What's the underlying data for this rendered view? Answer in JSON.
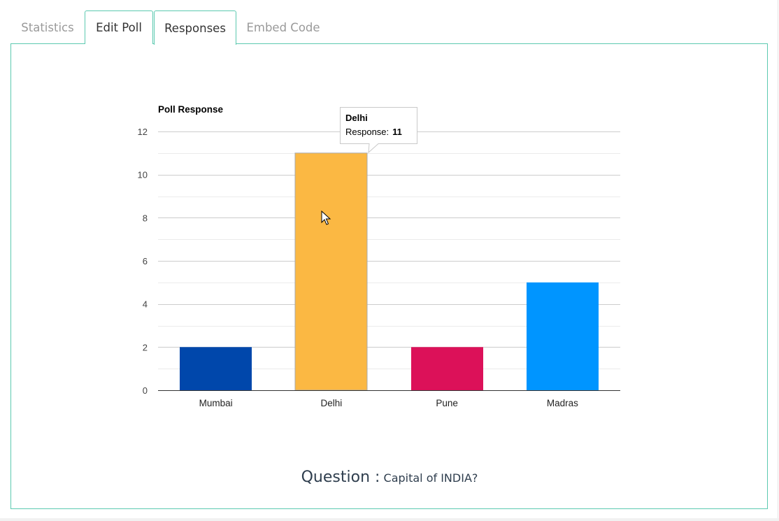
{
  "tabs": [
    {
      "label": "Statistics"
    },
    {
      "label": "Edit Poll"
    },
    {
      "label": "Responses"
    },
    {
      "label": "Embed Code"
    }
  ],
  "question": {
    "label": "Question :",
    "text": "Capital of INDIA?"
  },
  "tooltip": {
    "title": "Delhi",
    "label": "Response:",
    "value": "11"
  },
  "chart_data": {
    "type": "bar",
    "title": "Poll Response",
    "categories": [
      "Mumbai",
      "Delhi",
      "Pune",
      "Madras"
    ],
    "series": [
      {
        "name": "Response",
        "values": [
          2,
          11,
          2,
          5
        ]
      }
    ],
    "colors": [
      "#0047ab",
      "#fbb843",
      "#dc1159",
      "#0095ff"
    ],
    "ylim": [
      0,
      12
    ],
    "yticks": [
      0,
      2,
      4,
      6,
      8,
      10,
      12
    ],
    "grid": true,
    "legend": "none",
    "highlighted_category": "Delhi"
  }
}
